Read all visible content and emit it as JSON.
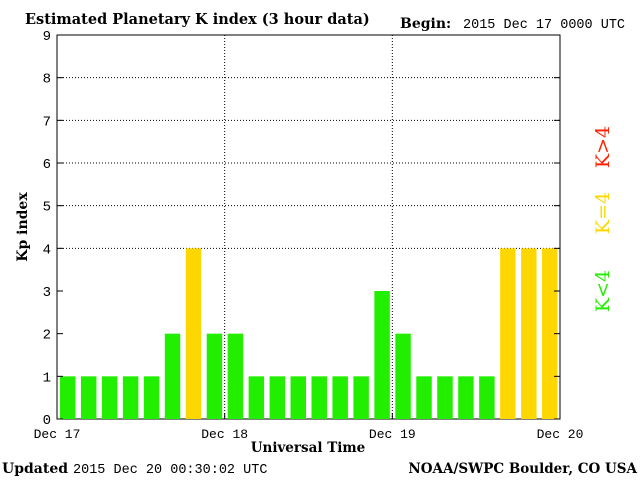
{
  "header": {
    "title": "Estimated Planetary K index (3 hour data)",
    "begin_label": "Begin:",
    "begin_value": "2015 Dec 17 0000 UTC"
  },
  "footer": {
    "updated_label": "Updated",
    "updated_value": "2015 Dec 20 00:30:02 UTC",
    "credit": "NOAA/SWPC Boulder, CO USA"
  },
  "legend": {
    "low": "K<4",
    "mid": "K=4",
    "high": "K>4"
  },
  "colors": {
    "low": "#22ee00",
    "mid": "#ffd700",
    "high": "#ff2200",
    "axis": "#000000",
    "grid": "#000000"
  },
  "chart_data": {
    "type": "bar",
    "title": "Estimated Planetary K index (3 hour data)",
    "xlabel": "Universal Time",
    "ylabel": "Kp index",
    "ylim": [
      0,
      9
    ],
    "yticks": [
      "0",
      "1",
      "2",
      "3",
      "4",
      "5",
      "6",
      "7",
      "8",
      "9"
    ],
    "xticks": [
      "Dec 17",
      "Dec 18",
      "Dec 19",
      "Dec 20"
    ],
    "grid": "dotted, at day boundaries and K=4, 5, 6, 7, 8",
    "values": [
      1,
      1,
      1,
      1,
      1,
      2,
      4,
      2,
      2,
      1,
      1,
      1,
      1,
      1,
      1,
      3,
      2,
      1,
      1,
      1,
      1,
      4,
      4,
      4
    ]
  }
}
